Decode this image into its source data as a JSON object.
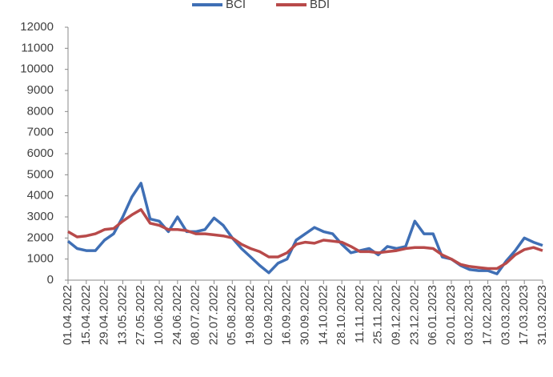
{
  "chart_data": {
    "type": "line",
    "categories": [
      "01.04.2022",
      null,
      "15.04.2022",
      null,
      "29.04.2022",
      null,
      "13.05.2022",
      null,
      "27.05.2022",
      null,
      "10.06.2022",
      null,
      "24.06.2022",
      null,
      "08.07.2022",
      null,
      "22.07.2022",
      null,
      "05.08.2022",
      null,
      "19.08.2022",
      null,
      "02.09.2022",
      null,
      "16.09.2022",
      null,
      "30.09.2022",
      null,
      "14.10.2022",
      null,
      "28.10.2022",
      null,
      "11.11.2022",
      null,
      "25.11.2022",
      null,
      "09.12.2022",
      null,
      "23.12.2022",
      null,
      "06.01.2023",
      null,
      "20.01.2023",
      null,
      "03.02.2023",
      null,
      "17.02.2023",
      null,
      "03.03.2023",
      null,
      "17.03.2023",
      null,
      "31.03.2023"
    ],
    "series": [
      {
        "name": "BCI",
        "color": "#3f6fb5",
        "values": [
          1850,
          1500,
          1400,
          1400,
          1900,
          2200,
          3000,
          3950,
          4600,
          2900,
          2800,
          2300,
          3000,
          2300,
          2300,
          2400,
          2950,
          2600,
          2000,
          1500,
          1100,
          700,
          350,
          800,
          1000,
          1900,
          2200,
          2500,
          2300,
          2200,
          1700,
          1300,
          1400,
          1500,
          1200,
          1600,
          1500,
          1600,
          2800,
          2200,
          2200,
          1100,
          1000,
          700,
          500,
          450,
          450,
          300,
          900,
          1400,
          2000,
          1800,
          1650
        ]
      },
      {
        "name": "BDI",
        "color": "#b84a4a",
        "values": [
          2300,
          2050,
          2100,
          2200,
          2400,
          2450,
          2800,
          3100,
          3350,
          2700,
          2600,
          2400,
          2400,
          2350,
          2200,
          2200,
          2150,
          2100,
          2000,
          1700,
          1500,
          1350,
          1100,
          1100,
          1300,
          1700,
          1800,
          1750,
          1900,
          1850,
          1800,
          1600,
          1350,
          1350,
          1300,
          1350,
          1400,
          1500,
          1550,
          1550,
          1500,
          1200,
          1000,
          750,
          650,
          600,
          550,
          550,
          800,
          1200,
          1450,
          1550,
          1400
        ]
      }
    ],
    "ylim": [
      0,
      12000
    ],
    "yticks": [
      0,
      1000,
      2000,
      3000,
      4000,
      5000,
      6000,
      7000,
      8000,
      9000,
      10000,
      11000,
      12000
    ],
    "legend": "top"
  }
}
